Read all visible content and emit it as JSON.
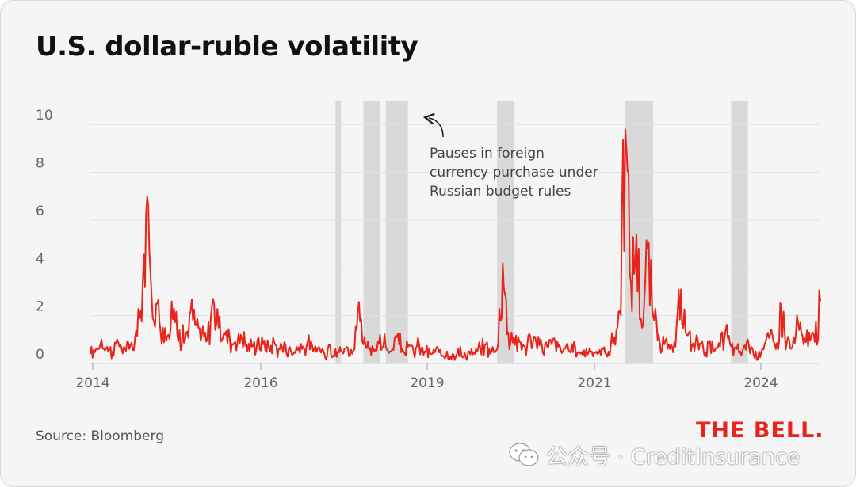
{
  "source": "Source: Bloomberg",
  "logo_text": "THE BELL.",
  "watermark": {
    "icon": "wechat-icon",
    "text": "公众号 · CreditInsurance"
  },
  "colors": {
    "line": "#e8251c",
    "band": "#d9d9d9",
    "grid": "#e2e2e2",
    "axis_text": "#666666"
  },
  "chart_data": {
    "type": "line",
    "title": "U.S. dollar-ruble volatility",
    "xlabel": "",
    "ylabel": "",
    "x_ticks": [
      "2014",
      "2016",
      "2019",
      "2021",
      "2024"
    ],
    "y_ticks": [
      "0",
      "2",
      "4",
      "6",
      "8",
      "10"
    ],
    "ylim": [
      0,
      11
    ],
    "xlim": [
      "2014-01",
      "2024-12"
    ],
    "grid": true,
    "annotation": {
      "lines": [
        "Pauses in foreign",
        "currency purchase under",
        "Russian budget rules"
      ]
    },
    "shaded_periods": [
      [
        "2017-09",
        "2017-09"
      ],
      [
        "2018-02",
        "2018-04"
      ],
      [
        "2018-06",
        "2018-09"
      ],
      [
        "2020-02",
        "2020-04"
      ],
      [
        "2022-01",
        "2022-05"
      ],
      [
        "2023-08",
        "2023-10"
      ]
    ],
    "series": [
      {
        "x": [
          "2014-01",
          "2014-02",
          "2014-03",
          "2014-04",
          "2014-05",
          "2014-06",
          "2014-07",
          "2014-08",
          "2014-09",
          "2014-10",
          "2014-11",
          "2014-12",
          "2015-01",
          "2015-02",
          "2015-03",
          "2015-04",
          "2015-05",
          "2015-06",
          "2015-07",
          "2015-08",
          "2015-09",
          "2015-10",
          "2015-11",
          "2015-12",
          "2016-01",
          "2016-02",
          "2016-03",
          "2016-04",
          "2016-05",
          "2016-06",
          "2016-07",
          "2016-08",
          "2016-09",
          "2016-10",
          "2016-11",
          "2016-12",
          "2017-01",
          "2017-02",
          "2017-03",
          "2017-04",
          "2017-05",
          "2017-06",
          "2017-07",
          "2017-08",
          "2017-09",
          "2017-10",
          "2017-11",
          "2017-12",
          "2018-01",
          "2018-02",
          "2018-03",
          "2018-04",
          "2018-05",
          "2018-06",
          "2018-07",
          "2018-08",
          "2018-09",
          "2018-10",
          "2018-11",
          "2018-12",
          "2019-01",
          "2019-02",
          "2019-03",
          "2019-04",
          "2019-05",
          "2019-06",
          "2019-07",
          "2019-08",
          "2019-09",
          "2019-10",
          "2019-11",
          "2019-12",
          "2020-01",
          "2020-02",
          "2020-03",
          "2020-04",
          "2020-05",
          "2020-06",
          "2020-07",
          "2020-08",
          "2020-09",
          "2020-10",
          "2020-11",
          "2020-12",
          "2021-01",
          "2021-02",
          "2021-03",
          "2021-04",
          "2021-05",
          "2021-06",
          "2021-07",
          "2021-08",
          "2021-09",
          "2021-10",
          "2021-11",
          "2021-12",
          "2022-01",
          "2022-02",
          "2022-03",
          "2022-04",
          "2022-05",
          "2022-06",
          "2022-07",
          "2022-08",
          "2022-09",
          "2022-10",
          "2022-11",
          "2022-12",
          "2023-01",
          "2023-02",
          "2023-03",
          "2023-04",
          "2023-05",
          "2023-06",
          "2023-07",
          "2023-08",
          "2023-09",
          "2023-10",
          "2023-11",
          "2023-12",
          "2024-01",
          "2024-02",
          "2024-03",
          "2024-04",
          "2024-05",
          "2024-06",
          "2024-07",
          "2024-08",
          "2024-09",
          "2024-10",
          "2024-11",
          "2024-12"
        ],
        "values": [
          0.4,
          0.6,
          1.0,
          0.7,
          0.5,
          0.9,
          0.7,
          0.6,
          1.0,
          2.2,
          6.3,
          2.8,
          2.5,
          1.5,
          1.2,
          2.3,
          1.4,
          1.0,
          2.2,
          1.6,
          1.2,
          1.0,
          2.7,
          1.5,
          1.3,
          1.1,
          0.9,
          1.2,
          0.8,
          0.7,
          1.0,
          0.8,
          0.7,
          0.9,
          0.6,
          0.8,
          0.5,
          0.7,
          0.6,
          0.9,
          0.5,
          0.7,
          0.4,
          0.8,
          0.6,
          0.5,
          0.7,
          0.4,
          2.2,
          0.8,
          0.6,
          0.5,
          1.2,
          0.7,
          0.5,
          1.1,
          0.6,
          0.7,
          0.5,
          0.8,
          0.5,
          0.4,
          0.6,
          0.3,
          0.5,
          0.4,
          0.6,
          0.3,
          0.5,
          0.4,
          0.6,
          0.8,
          0.5,
          0.6,
          4.2,
          1.3,
          1.1,
          0.9,
          0.7,
          1.1,
          0.9,
          0.8,
          0.7,
          1.0,
          0.7,
          0.6,
          0.5,
          0.7,
          0.4,
          0.6,
          0.5,
          0.4,
          0.6,
          0.5,
          1.1,
          2.2,
          9.8,
          3.4,
          5.4,
          1.5,
          4.8,
          2.0,
          1.2,
          0.8,
          0.6,
          0.7,
          3.1,
          1.2,
          0.8,
          1.0,
          0.6,
          0.9,
          0.5,
          0.7,
          1.4,
          0.7,
          0.6,
          0.5,
          1.0,
          0.4,
          0.5,
          0.8,
          1.2,
          0.6,
          2.5,
          0.9,
          0.7,
          1.7,
          0.8,
          1.3,
          0.9,
          2.6
        ]
      }
    ]
  }
}
